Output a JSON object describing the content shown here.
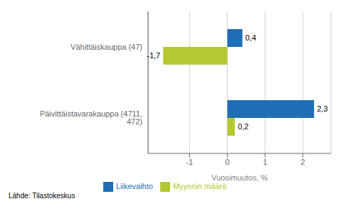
{
  "chart_data": {
    "type": "bar",
    "orientation": "horizontal",
    "categories": [
      "Päivittäistavarakauppa (4711, 472)",
      "Vähittäiskauppa (47)"
    ],
    "series": [
      {
        "name": "Liikevaihto",
        "color": "#1f6eb5",
        "values": [
          2.3,
          0.4
        ],
        "value_labels": [
          "2,3",
          "0,4"
        ]
      },
      {
        "name": "Myynnin määrä",
        "color": "#b5c832",
        "values": [
          0.2,
          -1.7
        ],
        "value_labels": [
          "0,2",
          "-1,7"
        ]
      }
    ],
    "xlabel": "Vuosimuutos, %",
    "xlim": [
      -2.1,
      2.75
    ],
    "xticks": [
      -1,
      0,
      1,
      2
    ],
    "grid": true,
    "data_labels": true,
    "legend": "bottom",
    "annotations": [
      "Lähde: Tilastokeskus"
    ]
  }
}
